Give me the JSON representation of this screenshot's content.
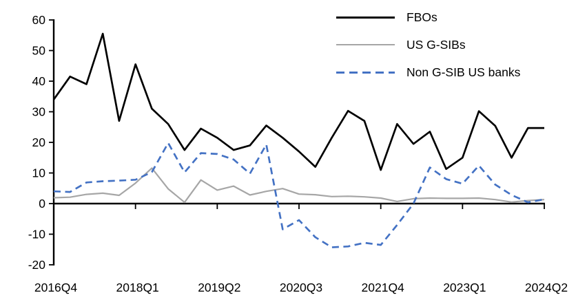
{
  "chart_data": {
    "type": "line",
    "title": "",
    "xlabel": "",
    "ylabel": "",
    "ylim": [
      -20,
      60
    ],
    "y_ticks": [
      60,
      50,
      40,
      30,
      20,
      10,
      0,
      -10,
      -20
    ],
    "x_tick_labels": [
      "2016Q4",
      "2018Q1",
      "2019Q2",
      "2020Q3",
      "2021Q4",
      "2023Q1",
      "2024Q2"
    ],
    "x_tick_indices": [
      0,
      5,
      10,
      15,
      20,
      25,
      30
    ],
    "categories": [
      "2016Q4",
      "2017Q1",
      "2017Q2",
      "2017Q3",
      "2017Q4",
      "2018Q1",
      "2018Q2",
      "2018Q3",
      "2018Q4",
      "2019Q1",
      "2019Q2",
      "2019Q3",
      "2019Q4",
      "2020Q1",
      "2020Q2",
      "2020Q3",
      "2020Q4",
      "2021Q1",
      "2021Q2",
      "2021Q3",
      "2021Q4",
      "2022Q1",
      "2022Q2",
      "2022Q3",
      "2022Q4",
      "2023Q1",
      "2023Q2",
      "2023Q3",
      "2023Q4",
      "2024Q1",
      "2024Q2"
    ],
    "grid": false,
    "legend_position": "top-right",
    "series": [
      {
        "name": "FBOs",
        "color": "#000000",
        "style": "solid",
        "values": [
          34,
          41.5,
          39,
          55.5,
          27,
          45.5,
          31,
          26,
          17.5,
          24.5,
          21.5,
          17.5,
          19,
          25.5,
          21.5,
          17,
          12,
          21.5,
          30.3,
          27,
          11,
          26,
          19.5,
          23.5,
          11.3,
          15,
          30.2,
          25.4,
          15,
          24.7,
          24.7
        ]
      },
      {
        "name": "US G-SIBs",
        "color": "#a6a6a6",
        "style": "solid",
        "values": [
          1.9,
          2.1,
          3,
          3.4,
          2.7,
          6.7,
          11.6,
          4.8,
          0.4,
          7.7,
          4.4,
          5.7,
          2.8,
          4,
          4.9,
          3.1,
          2.9,
          2.3,
          2.4,
          2.2,
          1.8,
          0.7,
          1.6,
          1.8,
          1.7,
          1.7,
          1.8,
          1.3,
          0.5,
          1,
          1.3
        ]
      },
      {
        "name": "Non G-SIB US banks",
        "color": "#4472c4",
        "style": "dashed",
        "values": [
          4,
          3.8,
          6.9,
          7.3,
          7.5,
          7.8,
          10.3,
          19.8,
          10.2,
          16.5,
          16.2,
          14.4,
          9.8,
          19.3,
          -8.4,
          -5.4,
          -11,
          -14.3,
          -14,
          -12.8,
          -13.5,
          -7,
          0,
          11.8,
          8,
          6.5,
          12.4,
          6.2,
          2.8,
          0.4,
          1.4
        ]
      }
    ]
  },
  "legend": {
    "items": [
      {
        "label": "FBOs"
      },
      {
        "label": "US G-SIBs"
      },
      {
        "label": "Non G-SIB US banks"
      }
    ]
  }
}
